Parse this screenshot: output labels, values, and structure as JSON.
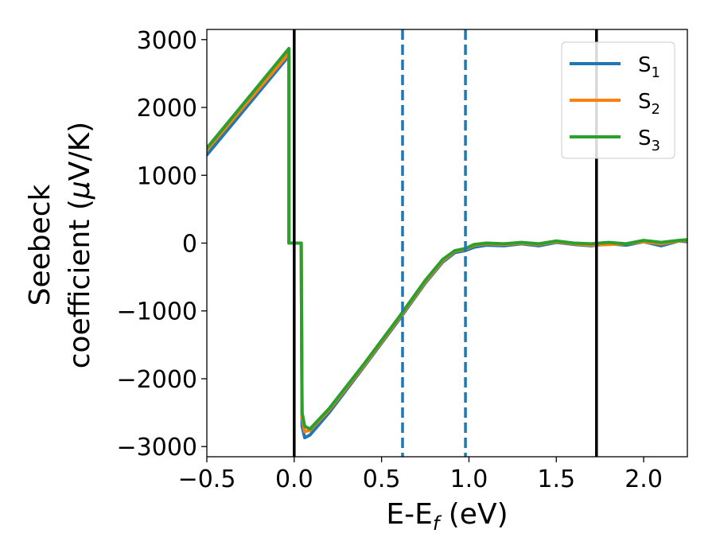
{
  "chart_data": {
    "type": "line",
    "xlabel": "E-E",
    "xlabel_sub": "f",
    "xlabel_unit": " (eV)",
    "ylabel_line1": "Seebeck",
    "ylabel_line2": "coefficient  (",
    "ylabel_mu": "μ",
    "ylabel_unit": "V/K)",
    "xlim": [
      -0.5,
      2.25
    ],
    "ylim": [
      -3150,
      3150
    ],
    "xticks": [
      -0.5,
      0.0,
      0.5,
      1.0,
      1.5,
      2.0
    ],
    "xtick_labels": [
      "−0.5",
      "0.0",
      "0.5",
      "1.0",
      "1.5",
      "2.0"
    ],
    "yticks": [
      3000,
      2000,
      1000,
      0,
      -1000,
      -2000,
      -3000
    ],
    "ytick_labels": [
      "3000",
      "2000",
      "1000",
      "0",
      "−1000",
      "−2000",
      "−3000"
    ],
    "vlines": [
      {
        "x": 0.0,
        "style": "solid",
        "color": "#000000"
      },
      {
        "x": 1.73,
        "style": "solid",
        "color": "#000000"
      },
      {
        "x": 0.62,
        "style": "dashed",
        "color": "#1f77b4"
      },
      {
        "x": 0.98,
        "style": "dashed",
        "color": "#1f77b4"
      }
    ],
    "legend": {
      "position": "top-right"
    },
    "series": [
      {
        "name": "S",
        "subscript": "1",
        "color": "#1f77b4",
        "points": [
          [
            -0.5,
            1300
          ],
          [
            -0.03,
            2760
          ],
          [
            -0.03,
            0
          ],
          [
            0.04,
            0
          ],
          [
            0.045,
            -2700
          ],
          [
            0.06,
            -2870
          ],
          [
            0.09,
            -2830
          ],
          [
            0.2,
            -2500
          ],
          [
            0.4,
            -1820
          ],
          [
            0.6,
            -1130
          ],
          [
            0.75,
            -590
          ],
          [
            0.85,
            -280
          ],
          [
            0.92,
            -140
          ],
          [
            0.98,
            -110
          ],
          [
            1.03,
            -60
          ],
          [
            1.1,
            -30
          ],
          [
            1.2,
            -40
          ],
          [
            1.3,
            -10
          ],
          [
            1.4,
            -40
          ],
          [
            1.5,
            10
          ],
          [
            1.6,
            -20
          ],
          [
            1.7,
            -40
          ],
          [
            1.8,
            -10
          ],
          [
            1.9,
            -30
          ],
          [
            2.0,
            20
          ],
          [
            2.1,
            -40
          ],
          [
            2.2,
            30
          ],
          [
            2.25,
            20
          ]
        ]
      },
      {
        "name": "S",
        "subscript": "2",
        "color": "#ff7f0e",
        "points": [
          [
            -0.5,
            1370
          ],
          [
            -0.03,
            2800
          ],
          [
            -0.03,
            0
          ],
          [
            0.04,
            0
          ],
          [
            0.045,
            -2550
          ],
          [
            0.06,
            -2780
          ],
          [
            0.09,
            -2760
          ],
          [
            0.2,
            -2460
          ],
          [
            0.4,
            -1800
          ],
          [
            0.6,
            -1110
          ],
          [
            0.75,
            -570
          ],
          [
            0.85,
            -260
          ],
          [
            0.92,
            -120
          ],
          [
            0.98,
            -90
          ],
          [
            1.03,
            -30
          ],
          [
            1.1,
            -10
          ],
          [
            1.2,
            -20
          ],
          [
            1.3,
            0
          ],
          [
            1.4,
            -20
          ],
          [
            1.5,
            20
          ],
          [
            1.6,
            -10
          ],
          [
            1.7,
            -30
          ],
          [
            1.8,
            -20
          ],
          [
            1.9,
            -10
          ],
          [
            2.0,
            20
          ],
          [
            2.1,
            -10
          ],
          [
            2.2,
            30
          ],
          [
            2.25,
            40
          ]
        ]
      },
      {
        "name": "S",
        "subscript": "3",
        "color": "#2ca02c",
        "points": [
          [
            -0.5,
            1400
          ],
          [
            -0.03,
            2870
          ],
          [
            -0.03,
            0
          ],
          [
            0.04,
            0
          ],
          [
            0.045,
            -2500
          ],
          [
            0.06,
            -2700
          ],
          [
            0.09,
            -2740
          ],
          [
            0.2,
            -2440
          ],
          [
            0.4,
            -1780
          ],
          [
            0.6,
            -1090
          ],
          [
            0.75,
            -550
          ],
          [
            0.85,
            -240
          ],
          [
            0.92,
            -110
          ],
          [
            0.98,
            -80
          ],
          [
            1.03,
            -20
          ],
          [
            1.1,
            0
          ],
          [
            1.2,
            -10
          ],
          [
            1.3,
            10
          ],
          [
            1.4,
            -10
          ],
          [
            1.5,
            30
          ],
          [
            1.6,
            0
          ],
          [
            1.7,
            -10
          ],
          [
            1.8,
            10
          ],
          [
            1.9,
            -10
          ],
          [
            2.0,
            40
          ],
          [
            2.1,
            10
          ],
          [
            2.2,
            40
          ],
          [
            2.25,
            50
          ]
        ]
      }
    ]
  }
}
